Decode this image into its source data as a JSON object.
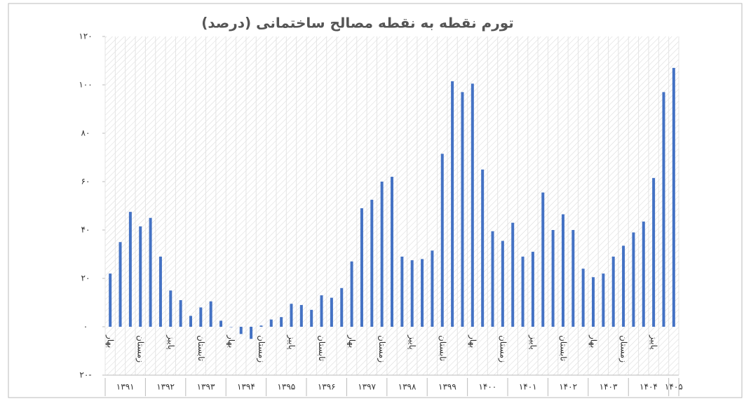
{
  "chart_data": {
    "type": "bar",
    "title": "تورم نقطه به نقطه مصالح ساختمانی (درصد)",
    "color": "#4472c4",
    "categories": [
      "بهار",
      null,
      null,
      "زمستان",
      null,
      null,
      "پاییز",
      null,
      null,
      "تابستان",
      null,
      null,
      "بهار",
      null,
      null,
      "زمستان",
      null,
      null,
      "پاییز",
      null,
      null,
      "تابستان",
      null,
      null,
      "بهار",
      null,
      null,
      "زمستان",
      null,
      null,
      "پاییز",
      null,
      null,
      "تابستان",
      null,
      null,
      "بهار",
      null,
      null,
      "زمستان",
      null,
      null,
      "پاییز",
      null,
      null,
      "تابستان",
      null,
      null,
      "بهار",
      null,
      null,
      "زمستان",
      null,
      null,
      "پاییز",
      null,
      null
    ],
    "groups": [
      "۱۳۹۱",
      "۱۳۹۲",
      "۱۳۹۳",
      "۱۳۹۴",
      "۱۳۹۵",
      "۱۳۹۶",
      "۱۳۹۷",
      "۱۳۹۸",
      "۱۳۹۹",
      "۱۴۰۰",
      "۱۴۰۱",
      "۱۴۰۲",
      "۱۴۰۳",
      "۱۴۰۴",
      "۱۴۰۵"
    ],
    "values": [
      22,
      35,
      47.5,
      41.5,
      45,
      29,
      15,
      11,
      4.5,
      8,
      10.5,
      2.5,
      0,
      -3,
      -5,
      0.5,
      3,
      4,
      9.5,
      9,
      7,
      13,
      12,
      16,
      27,
      49,
      52.5,
      60,
      62,
      29,
      27.5,
      28,
      31.5,
      71.5,
      101.5,
      97,
      100.5,
      65,
      39.5,
      35.5,
      43,
      29,
      31,
      55.5,
      40,
      46.5,
      40,
      24,
      20.5,
      22,
      29,
      33.5,
      39,
      43.5,
      61.5,
      97,
      107
    ],
    "ylim": [
      -20,
      120
    ],
    "yticks": [
      {
        "value": 120,
        "label": "۱۲۰"
      },
      {
        "value": 100,
        "label": "۱۰۰"
      },
      {
        "value": 80,
        "label": "۸۰"
      },
      {
        "value": 60,
        "label": "۶۰"
      },
      {
        "value": 40,
        "label": "۴۰"
      },
      {
        "value": 20,
        "label": "۲۰"
      },
      {
        "value": 0,
        "label": "۰"
      },
      {
        "value": -20,
        "label": "۲۰-"
      }
    ]
  }
}
